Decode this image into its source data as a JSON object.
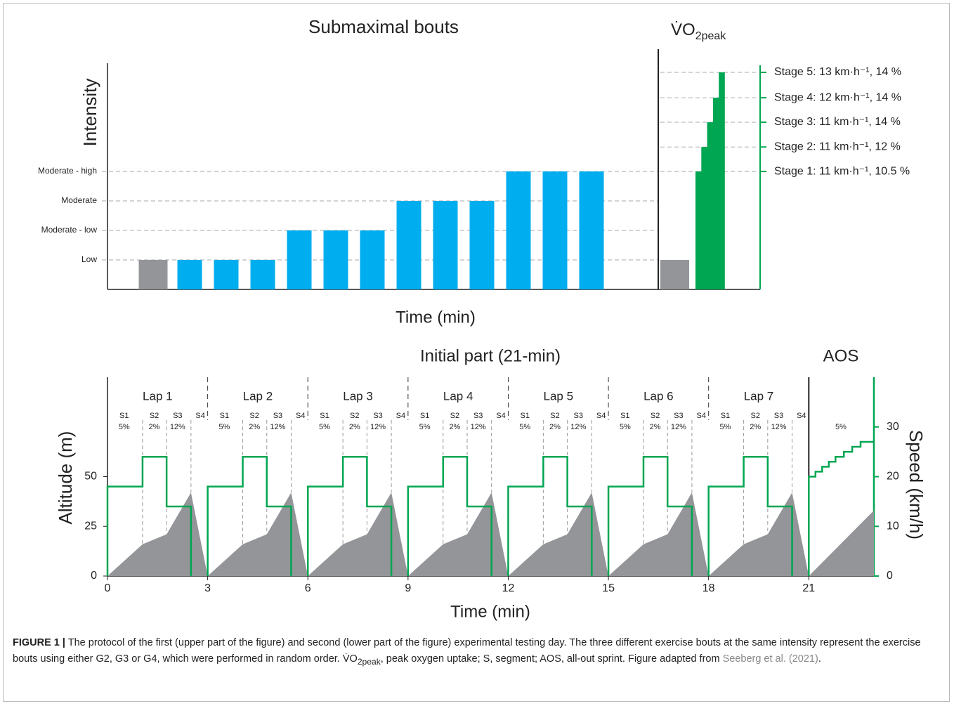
{
  "chart_data": [
    {
      "type": "bar",
      "title": "Submaximal bouts",
      "y_label": "Intensity",
      "x_label": "Time (min)",
      "ylim": [
        0,
        7.67
      ],
      "yticks": [
        {
          "value": 1,
          "label": "Low"
        },
        {
          "value": 2,
          "label": "Moderate - low"
        },
        {
          "value": 3,
          "label": "Moderate"
        },
        {
          "value": 4,
          "label": "Moderate - high"
        }
      ],
      "grid": true,
      "values": [
        1,
        1,
        1,
        1,
        2,
        2,
        2,
        3,
        3,
        3,
        4,
        4,
        4
      ],
      "colors": [
        "#939598",
        "#00aeef",
        "#00aeef",
        "#00aeef",
        "#00aeef",
        "#00aeef",
        "#00aeef",
        "#00aeef",
        "#00aeef",
        "#00aeef",
        "#00aeef",
        "#00aeef",
        "#00aeef"
      ]
    },
    {
      "type": "bar",
      "title": "V̇O",
      "title_sub": "2peak",
      "ylim": [
        0,
        7.67
      ],
      "y2ticks": [
        {
          "value": 4,
          "label": "Stage 1: 11 km·h⁻¹, 10.5 %"
        },
        {
          "value": 4.83,
          "label": "Stage 2: 11 km·h⁻¹, 12 %"
        },
        {
          "value": 5.67,
          "label": "Stage 3: 11 km·h⁻¹, 14 %"
        },
        {
          "value": 6.5,
          "label": "Stage 4: 12 km·h⁻¹, 14 %"
        },
        {
          "value": 7.36,
          "label": "Stage 5: 13 km·h⁻¹, 14 %"
        }
      ],
      "y2color": "#00a651",
      "values": [
        1,
        4,
        4.83,
        5.67,
        6.5,
        7.36
      ],
      "colors": [
        "#939598",
        "#00a651",
        "#00a651",
        "#00a651",
        "#00a651",
        "#00a651"
      ]
    },
    {
      "type": "line",
      "title": "Initial part (21-min)",
      "title_2": "AOS",
      "x_label": "Time (min)",
      "y_label": "Altitude (m)",
      "y2_label": "Speed (km/h)",
      "xlim": [
        0,
        22.95
      ],
      "xticks": [
        0,
        3,
        6,
        9,
        12,
        15,
        18,
        21
      ],
      "ylim": [
        0,
        100
      ],
      "yticks": [
        0,
        25,
        50
      ],
      "y2lim": [
        0,
        40
      ],
      "y2ticks": [
        0,
        10,
        20,
        30
      ],
      "y2color": "#00a651",
      "laps": [
        "Lap 1",
        "Lap 2",
        "Lap 3",
        "Lap 4",
        "Lap 5",
        "Lap 6",
        "Lap 7"
      ],
      "segments": [
        {
          "name": "S1",
          "grade": "5%"
        },
        {
          "name": "S2",
          "grade": "2%"
        },
        {
          "name": "S3",
          "grade": "12%"
        },
        {
          "name": "S4"
        }
      ],
      "aos_grade": "5%",
      "series": [
        {
          "color": "#939598",
          "area": true,
          "x": [
            0,
            1.05,
            1.77,
            2.5,
            3,
            4.05,
            4.77,
            5.5,
            6,
            7.05,
            7.77,
            8.5,
            9,
            10.05,
            10.77,
            11.5,
            12,
            13.05,
            13.77,
            14.5,
            15,
            16.05,
            16.77,
            17.5,
            18,
            19.05,
            19.77,
            20.5,
            21,
            22.95
          ],
          "values": [
            0,
            16,
            21,
            42,
            0,
            16,
            21,
            42,
            0,
            16,
            21,
            42,
            0,
            16,
            21,
            42,
            0,
            16,
            21,
            42,
            0,
            16,
            21,
            42,
            0,
            16,
            21,
            42,
            0,
            33
          ]
        },
        {
          "color": "#00a651",
          "axis": "y2",
          "x": [
            0,
            0,
            1.05,
            1.05,
            1.77,
            1.77,
            2.5,
            2.5,
            null,
            3,
            3,
            4.05,
            4.05,
            4.77,
            4.77,
            5.5,
            5.5,
            null,
            6,
            6,
            7.05,
            7.05,
            7.77,
            7.77,
            8.5,
            8.5,
            null,
            9,
            9,
            10.05,
            10.05,
            10.77,
            10.77,
            11.5,
            11.5,
            null,
            12,
            12,
            13.05,
            13.05,
            13.77,
            13.77,
            14.5,
            14.5,
            null,
            15,
            15,
            16.05,
            16.05,
            16.77,
            16.77,
            17.5,
            17.5,
            null,
            18,
            18,
            19.05,
            19.05,
            19.77,
            19.77,
            20.5,
            20.5,
            null,
            21,
            21,
            21.2,
            21.2,
            21.4,
            21.4,
            21.6,
            21.6,
            21.8,
            21.8,
            22.05,
            22.05,
            22.3,
            22.3,
            22.55,
            22.55,
            22.95
          ],
          "values": [
            0,
            18,
            18,
            24,
            24,
            14,
            14,
            0,
            null,
            0,
            18,
            18,
            24,
            24,
            14,
            14,
            0,
            null,
            0,
            18,
            18,
            24,
            24,
            14,
            14,
            0,
            null,
            0,
            18,
            18,
            24,
            24,
            14,
            14,
            0,
            null,
            0,
            18,
            18,
            24,
            24,
            14,
            14,
            0,
            null,
            0,
            18,
            18,
            24,
            24,
            14,
            14,
            0,
            null,
            0,
            18,
            18,
            24,
            24,
            14,
            14,
            0,
            null,
            0,
            20,
            20,
            21,
            21,
            22,
            22,
            23,
            23,
            24,
            24,
            25,
            25,
            26,
            26,
            27,
            27
          ]
        }
      ]
    }
  ],
  "caption": {
    "label": "FIGURE 1 |",
    "text_1": " The protocol of the first (upper part of the figure) and second (lower part of the figure) experimental testing day. The three different exercise bouts at the same intensity represent the exercise bouts using either G2, G3 or G4, which were performed in random order. V̇O",
    "sub": "2peak",
    "text_2": ", peak oxygen uptake; S, segment; AOS, all-out sprint. Figure adapted from ",
    "link": "Seeberg et al. (2021)",
    "end": "."
  }
}
